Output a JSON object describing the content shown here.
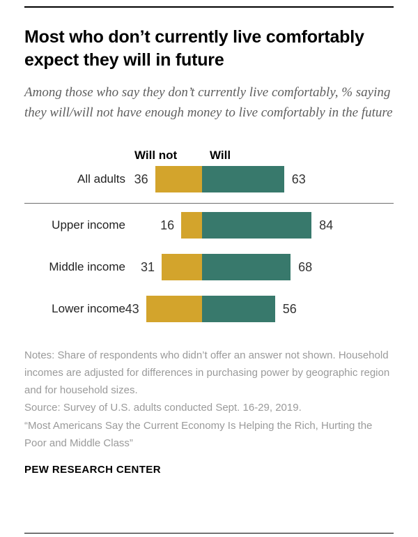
{
  "title": "Most who don’t currently live comfortably expect they will in future",
  "subtitle": "Among those who say they don’t currently live comfortably, % saying they will/will not have enough money to live comfortably in the future",
  "chart_data": {
    "type": "bar",
    "orientation": "horizontal-diverging",
    "categories": [
      "All adults",
      "Upper income",
      "Middle income",
      "Lower income"
    ],
    "series": [
      {
        "name": "Will not",
        "color": "#d3a42c",
        "values": [
          36,
          16,
          31,
          43
        ]
      },
      {
        "name": "Will",
        "color": "#38796c",
        "values": [
          63,
          84,
          68,
          56
        ]
      }
    ],
    "value_range": [
      0,
      100
    ],
    "legend_position": "top",
    "grid": false
  },
  "notes": [
    "Notes: Share of respondents who didn’t offer an answer not shown. Household incomes are adjusted for differences in purchasing power by geographic region and for household sizes.",
    "Source: Survey of U.S. adults conducted Sept. 16-29, 2019.",
    "“Most Americans Say the Current Economy Is Helping the Rich, Hurting the Poor and Middle Class”"
  ],
  "footer": "PEW RESEARCH CENTER"
}
